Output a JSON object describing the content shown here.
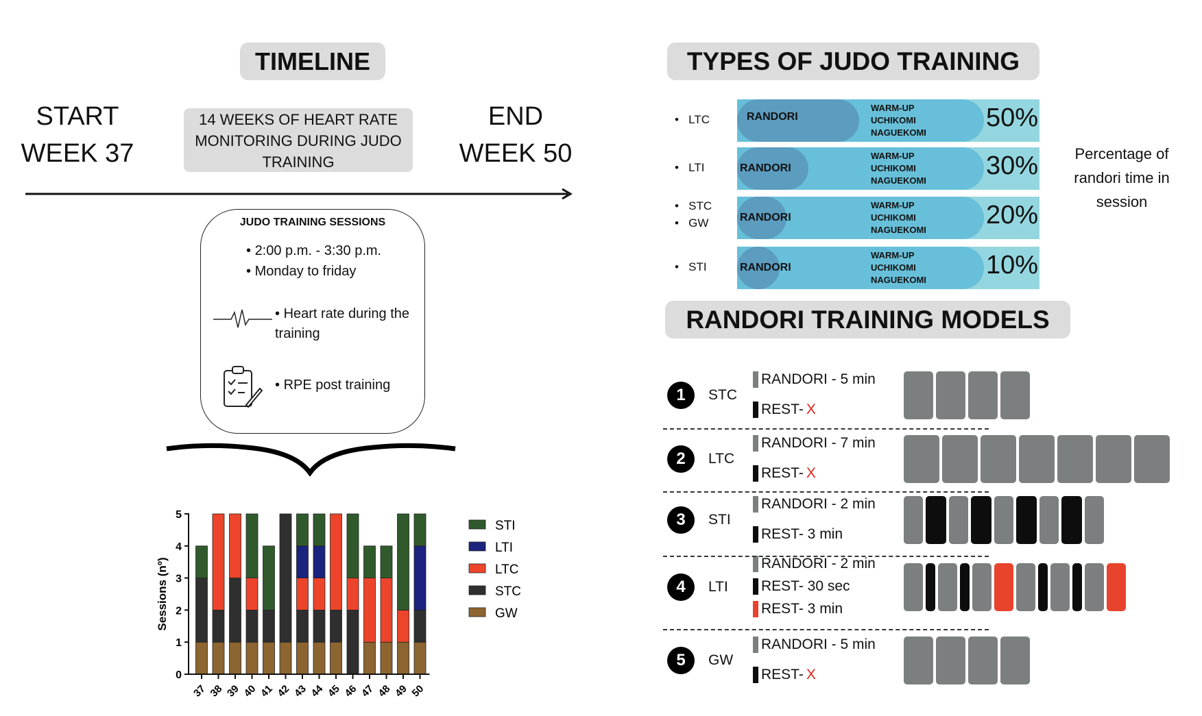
{
  "timeline": {
    "title": "TIMELINE",
    "start": [
      "START",
      "WEEK 37"
    ],
    "end": [
      "END",
      "WEEK 50"
    ],
    "description": "14 WEEKS OF HEART RATE MONITORING DURING JUDO TRAINING"
  },
  "sessions": {
    "title": "JUDO TRAINING SESSIONS",
    "time": "2:00 p.m. - 3:30 p.m.",
    "days": "Monday to friday",
    "heart_rate": "Heart rate during the training",
    "rpe": "RPE post training"
  },
  "types": {
    "title": "TYPES OF JUDO TRAINING",
    "note": "Percentage of randori time in session",
    "rand_label": "RANDORI",
    "activities": [
      "WARM-UP",
      "UCHIKOMI",
      "NAGUEKOMI"
    ],
    "rows": [
      {
        "labels": [
          "LTC"
        ],
        "percent": "50%",
        "value": 50
      },
      {
        "labels": [
          "LTI"
        ],
        "percent": "30%",
        "value": 30
      },
      {
        "labels": [
          "STC",
          "GW"
        ],
        "percent": "20%",
        "value": 20
      },
      {
        "labels": [
          "STI"
        ],
        "percent": "10%",
        "value": 10
      }
    ]
  },
  "models": {
    "title": "RANDORI TRAINING MODELS",
    "items": [
      {
        "n": "1",
        "type": "STC",
        "legend": [
          {
            "kind": "g",
            "text": "RANDORI - 5 min"
          },
          {
            "kind": "k",
            "text": "REST- ",
            "x": "X"
          }
        ],
        "blocks": [
          "G",
          "G",
          "G",
          "G"
        ]
      },
      {
        "n": "2",
        "type": "LTC",
        "legend": [
          {
            "kind": "g",
            "text": "RANDORI - 7 min"
          },
          {
            "kind": "k",
            "text": "REST- ",
            "x": "X"
          }
        ],
        "blocks": [
          "W",
          "W",
          "W",
          "W",
          "W",
          "W",
          "W"
        ]
      },
      {
        "n": "3",
        "type": "STI",
        "legend": [
          {
            "kind": "g",
            "text": "RANDORI - 2 min"
          },
          {
            "kind": "k",
            "text": "REST- 3 min"
          }
        ],
        "blocks": [
          "s",
          "K",
          "s",
          "K",
          "s",
          "K",
          "s",
          "K",
          "s"
        ]
      },
      {
        "n": "4",
        "type": "LTI",
        "legend": [
          {
            "kind": "g",
            "text": "RANDORI - 2 min"
          },
          {
            "kind": "k",
            "text": "REST- 30 sec"
          },
          {
            "kind": "r",
            "text": "REST- 3 min"
          }
        ],
        "blocks": [
          "s",
          "k",
          "s",
          "k",
          "s",
          "R",
          "s",
          "k",
          "s",
          "k",
          "s",
          "R"
        ]
      },
      {
        "n": "5",
        "type": "GW",
        "legend": [
          {
            "kind": "g",
            "text": "RANDORI - 5 min"
          },
          {
            "kind": "k",
            "text": "REST- ",
            "x": "X"
          }
        ],
        "blocks": [
          "G",
          "G",
          "G",
          "G"
        ]
      }
    ]
  },
  "colors": {
    "gray": "#7b7f80",
    "black": "#0d0d0d",
    "red": "#e8432d"
  },
  "chart_data": {
    "type": "bar",
    "stacked": true,
    "title": "",
    "xlabel": "",
    "ylabel": "Sessions (nº)",
    "ylim": [
      0,
      5
    ],
    "yticks": [
      "0",
      "1",
      "2",
      "3",
      "4",
      "5"
    ],
    "categories": [
      "37",
      "38",
      "39",
      "40",
      "41",
      "42",
      "43",
      "44",
      "45",
      "46",
      "47",
      "48",
      "49",
      "50"
    ],
    "series": [
      {
        "name": "GW",
        "color": "#8d6530",
        "values": [
          1,
          1,
          1,
          1,
          1,
          1,
          1,
          1,
          1,
          0,
          1,
          1,
          1,
          1
        ]
      },
      {
        "name": "STC",
        "color": "#2e2f2e",
        "values": [
          2,
          1,
          2,
          1,
          1,
          4,
          1,
          1,
          1,
          2,
          0,
          0,
          0,
          1
        ]
      },
      {
        "name": "LTC",
        "color": "#ec452c",
        "values": [
          0,
          3,
          2,
          1,
          0,
          0,
          1,
          1,
          3,
          1,
          2,
          2,
          1,
          0
        ]
      },
      {
        "name": "LTI",
        "color": "#1a237e",
        "values": [
          0,
          0,
          0,
          0,
          0,
          0,
          1,
          1,
          0,
          0,
          0,
          0,
          0,
          2
        ]
      },
      {
        "name": "STI",
        "color": "#315a2c",
        "values": [
          1,
          0,
          0,
          2,
          2,
          0,
          1,
          1,
          0,
          2,
          1,
          1,
          3,
          1
        ]
      }
    ],
    "legend": [
      "STI",
      "LTI",
      "LTC",
      "STC",
      "GW"
    ],
    "legend_position": "right"
  }
}
